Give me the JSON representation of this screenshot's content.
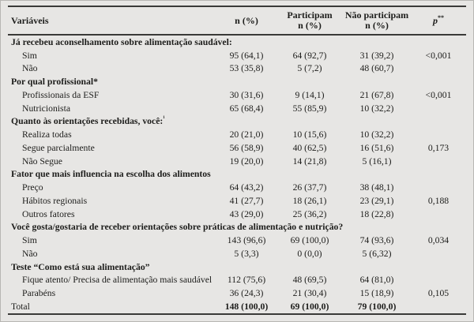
{
  "table": {
    "header": {
      "col_variables": "Variáveis",
      "col_n": "n (%)",
      "col_participam_line1": "Participam",
      "col_participam_line2": "n (%)",
      "col_nao_line1": "Não participam",
      "col_nao_line2": "n (%)",
      "col_p": "p",
      "col_p_sup": "**"
    },
    "rows": [
      {
        "type": "section",
        "label": "Já recebeu aconselhamento sobre alimentação saudável:"
      },
      {
        "type": "item",
        "label": "Sim",
        "n": "95 (64,1)",
        "part": "64 (92,7)",
        "nao": "31 (39,2)",
        "p": "<0,001"
      },
      {
        "type": "item",
        "label": "Não",
        "n": "53 (35,8)",
        "part": "5 (7,2)",
        "nao": "48 (60,7)",
        "p": ""
      },
      {
        "type": "section",
        "label": "Por qual profissional*"
      },
      {
        "type": "item",
        "label": "Profissionais da ESF",
        "n": "30 (31,6)",
        "part": "9 (14,1)",
        "nao": "21 (67,8)",
        "p": "<0,001"
      },
      {
        "type": "item",
        "label": "Nutricionista",
        "n": "65 (68,4)",
        "part": "55 (85,9)",
        "nao": "10 (32,2)",
        "p": ""
      },
      {
        "type": "section",
        "label": "Quanto às orientações recebidas, você:",
        "sup": "¹"
      },
      {
        "type": "item",
        "label": "Realiza todas",
        "n": "20 (21,0)",
        "part": "10 (15,6)",
        "nao": "10 (32,2)",
        "p": ""
      },
      {
        "type": "item",
        "label": "Segue parcialmente",
        "n": "56 (58,9)",
        "part": "40 (62,5)",
        "nao": "16 (51,6)",
        "p": "0,173"
      },
      {
        "type": "item",
        "label": "Não Segue",
        "n": "19 (20,0)",
        "part": "14 (21,8)",
        "nao": "5 (16,1)",
        "p": ""
      },
      {
        "type": "section",
        "label": "Fator que mais influencia na escolha dos alimentos"
      },
      {
        "type": "item",
        "label": "Preço",
        "n": "64 (43,2)",
        "part": "26 (37,7)",
        "nao": "38 (48,1)",
        "p": ""
      },
      {
        "type": "item",
        "label": "Hábitos regionais",
        "n": "41 (27,7)",
        "part": "18 (26,1)",
        "nao": "23 (29,1)",
        "p": "0,188"
      },
      {
        "type": "item",
        "label": "Outros fatores",
        "n": "43 (29,0)",
        "part": "25 (36,2)",
        "nao": "18 (22,8)",
        "p": ""
      },
      {
        "type": "section",
        "label": "Você gosta/gostaria de receber orientações sobre práticas de alimentação e nutrição?"
      },
      {
        "type": "item",
        "label": "Sim",
        "n": "143 (96,6)",
        "part": "69 (100,0)",
        "nao": "74 (93,6)",
        "p": "0,034"
      },
      {
        "type": "item",
        "label": "Não",
        "n": "5 (3,3)",
        "part": "0 (0,0)",
        "nao": "5 (6,32)",
        "p": ""
      },
      {
        "type": "section",
        "label": "Teste “Como está sua alimentação”"
      },
      {
        "type": "item",
        "label": "Fique atento/ Precisa de alimentação mais saudável",
        "n": "112 (75,6)",
        "part": "48 (69,5)",
        "nao": "64 (81,0)",
        "p": ""
      },
      {
        "type": "item",
        "label": "Parabéns",
        "n": "36 (24,3)",
        "part": "21 (30,4)",
        "nao": "15 (18,9)",
        "p": "0,105"
      },
      {
        "type": "total",
        "label": "Total",
        "n": "148 (100,0)",
        "part": "69 (100,0)",
        "nao": "79 (100,0)",
        "p": ""
      }
    ],
    "colors": {
      "background": "#e7e6e4",
      "rule": "#3a3a38",
      "text": "#1d1d1b"
    }
  }
}
